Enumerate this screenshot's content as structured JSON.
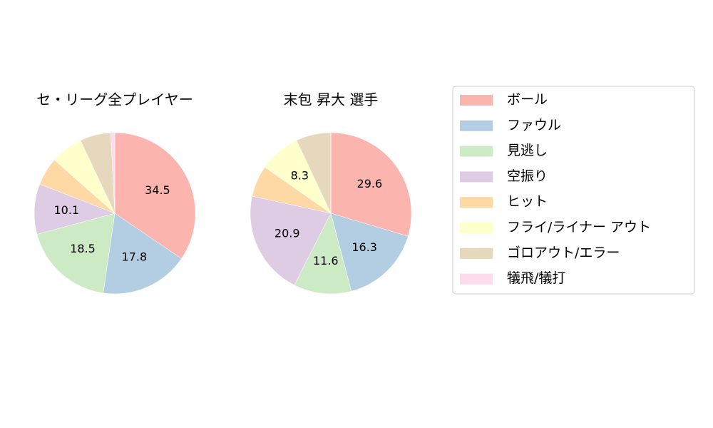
{
  "chart_data": [
    {
      "type": "pie",
      "title": "セ・リーグ全プレイヤー",
      "categories": [
        "ボール",
        "ファウル",
        "見逃し",
        "空振り",
        "ヒット",
        "フライ/ライナー アウト",
        "ゴロアウト/エラー",
        "犠飛/犠打"
      ],
      "values": [
        34.5,
        17.8,
        18.5,
        10.1,
        5.6,
        6.5,
        6.2,
        0.8
      ],
      "value_labels": [
        "34.5",
        "17.8",
        "18.5",
        "10.1",
        null,
        null,
        null,
        null
      ],
      "colors": [
        "#fbb4ae",
        "#b3cde3",
        "#ccebc5",
        "#decbe4",
        "#fed9a6",
        "#ffffcc",
        "#e5d8bd",
        "#fddaec"
      ]
    },
    {
      "type": "pie",
      "title": "末包 昇大  選手",
      "categories": [
        "ボール",
        "ファウル",
        "見逃し",
        "空振り",
        "ヒット",
        "フライ/ライナー アウト",
        "ゴロアウト/エラー",
        "犠飛/犠打"
      ],
      "values": [
        29.6,
        16.3,
        11.6,
        20.9,
        6.3,
        8.3,
        7.0,
        0
      ],
      "value_labels": [
        "29.6",
        "16.3",
        "11.6",
        "20.9",
        null,
        "8.3",
        null,
        null
      ],
      "colors": [
        "#fbb4ae",
        "#b3cde3",
        "#ccebc5",
        "#decbe4",
        "#fed9a6",
        "#ffffcc",
        "#e5d8bd",
        "#fddaec"
      ]
    }
  ]
}
